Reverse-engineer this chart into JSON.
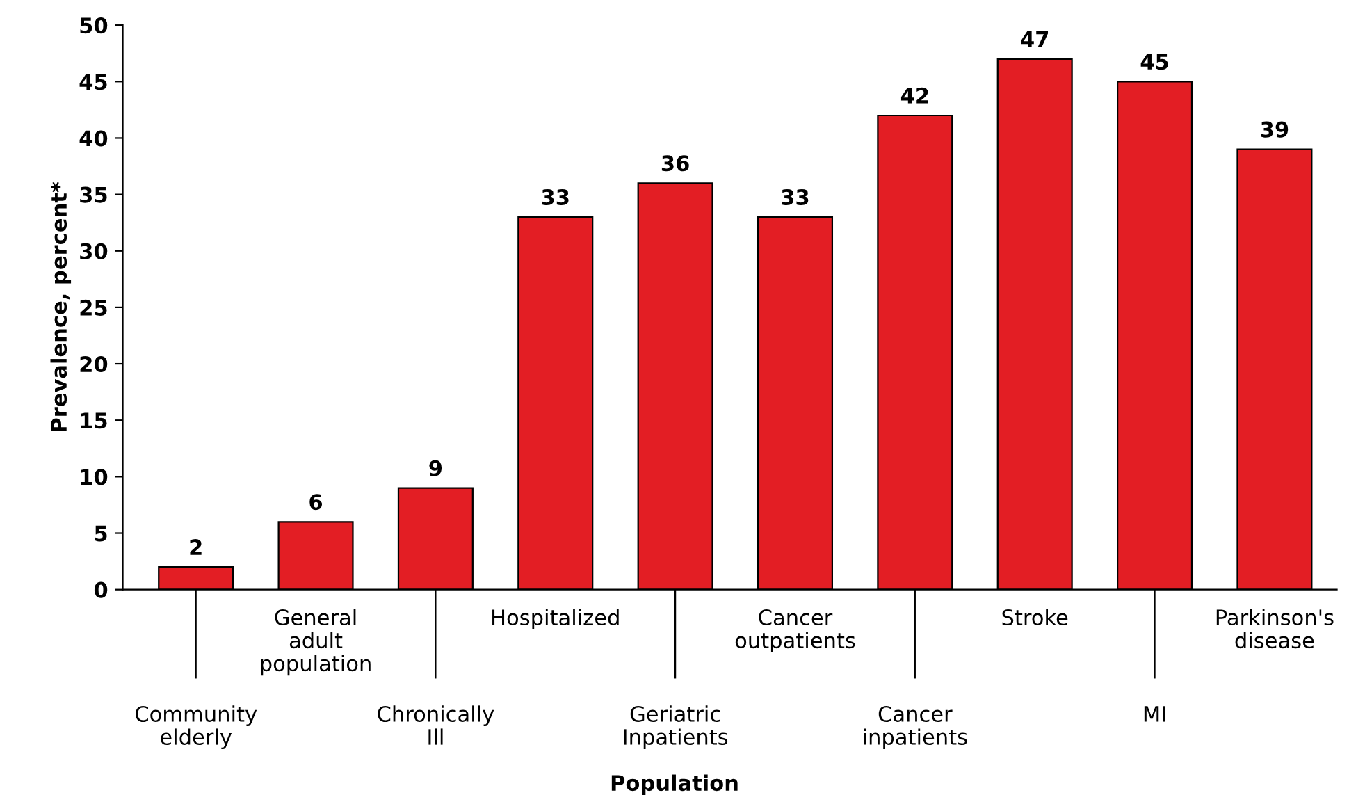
{
  "chart_data": {
    "type": "bar",
    "xlabel": "Population",
    "ylabel": "Prevalence, percent*",
    "categories": [
      "Community\nelderly",
      "General\nadult\npopulation",
      "Chronically\nIll",
      "Hospitalized",
      "Geriatric\nInpatients",
      "Cancer\noutpatients",
      "Cancer\ninpatients",
      "Stroke",
      "MI",
      "Parkinson's\ndisease"
    ],
    "values": [
      2,
      6,
      9,
      33,
      36,
      33,
      42,
      47,
      45,
      39
    ],
    "color": "#e31e24",
    "ylim": [
      0,
      50
    ],
    "yticks": [
      0,
      5,
      10,
      15,
      20,
      25,
      30,
      35,
      40,
      45,
      50
    ],
    "data_labels": true,
    "grid": false,
    "legend": false
  }
}
